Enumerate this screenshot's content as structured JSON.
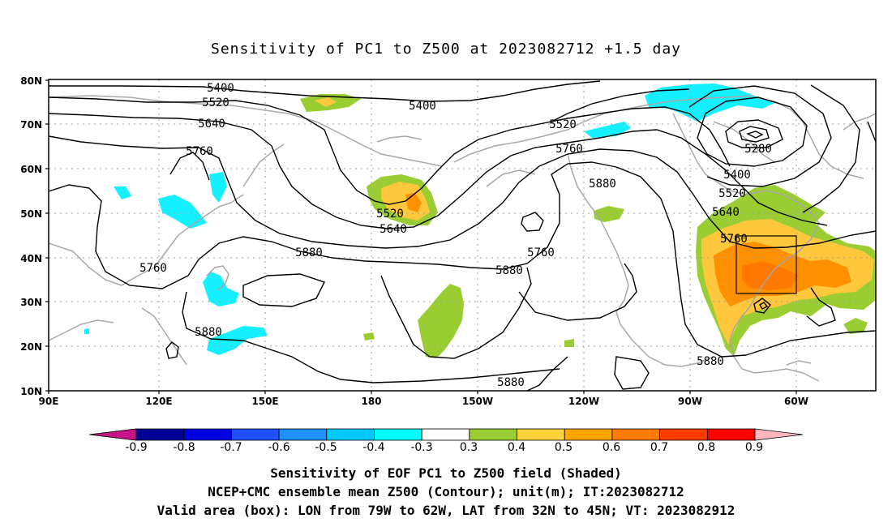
{
  "title": "Sensitivity of PC1 to Z500 at 2023082712 +1.5 day",
  "lat_labels": [
    "80N",
    "70N",
    "60N",
    "50N",
    "40N",
    "30N",
    "20N",
    "10N"
  ],
  "lon_labels": [
    "90E",
    "120E",
    "150E",
    "180",
    "150W",
    "120W",
    "90W",
    "60W"
  ],
  "contour_labels": [
    {
      "text": "5400"
    },
    {
      "text": "5520"
    },
    {
      "text": "5640"
    },
    {
      "text": "5400"
    },
    {
      "text": "5760"
    },
    {
      "text": "5520"
    },
    {
      "text": "5760"
    },
    {
      "text": "5280"
    },
    {
      "text": "5400"
    },
    {
      "text": "5520"
    },
    {
      "text": "5880"
    },
    {
      "text": "5640"
    },
    {
      "text": "5520"
    },
    {
      "text": "5640"
    },
    {
      "text": "5760"
    },
    {
      "text": "5880"
    },
    {
      "text": "5760"
    },
    {
      "text": "5760"
    },
    {
      "text": "5880"
    },
    {
      "text": "5880"
    },
    {
      "text": "5880"
    },
    {
      "text": "5880"
    }
  ],
  "colorbar": {
    "labels": [
      "-0.9",
      "-0.8",
      "-0.7",
      "-0.6",
      "-0.5",
      "-0.4",
      "-0.3",
      "0.3",
      "0.4",
      "0.5",
      "0.6",
      "0.7",
      "0.8",
      "0.9"
    ],
    "colors": [
      "#000099",
      "#0000e0",
      "#1f4fff",
      "#1f90ff",
      "#00c8ff",
      "#00ffff",
      "#ffffff",
      "#9acd32",
      "#ffd23c",
      "#ffa500",
      "#ff7a00",
      "#ff3c00",
      "#ff0000"
    ],
    "left_arrow_color": "#c71585",
    "right_arrow_color": "#ffb6c1"
  },
  "colors": {
    "contour": "#000000",
    "coast": "#a8a8a8",
    "grid": "#a0a0a0",
    "green": "#9acd32",
    "yellow": "#ffc83c",
    "orange": "#ff9000",
    "darkorange": "#ff7800",
    "cyan": "#14f0ff"
  },
  "captions": {
    "line1": "Sensitivity of EOF PC1 to Z500 field (Shaded)",
    "line2": "NCEP+CMC ensemble mean Z500 (Contour); unit(m); IT:2023082712",
    "line3": "Valid area (box): LON from 79W to 62W, LAT from 32N to 45N; VT: 2023082912"
  }
}
